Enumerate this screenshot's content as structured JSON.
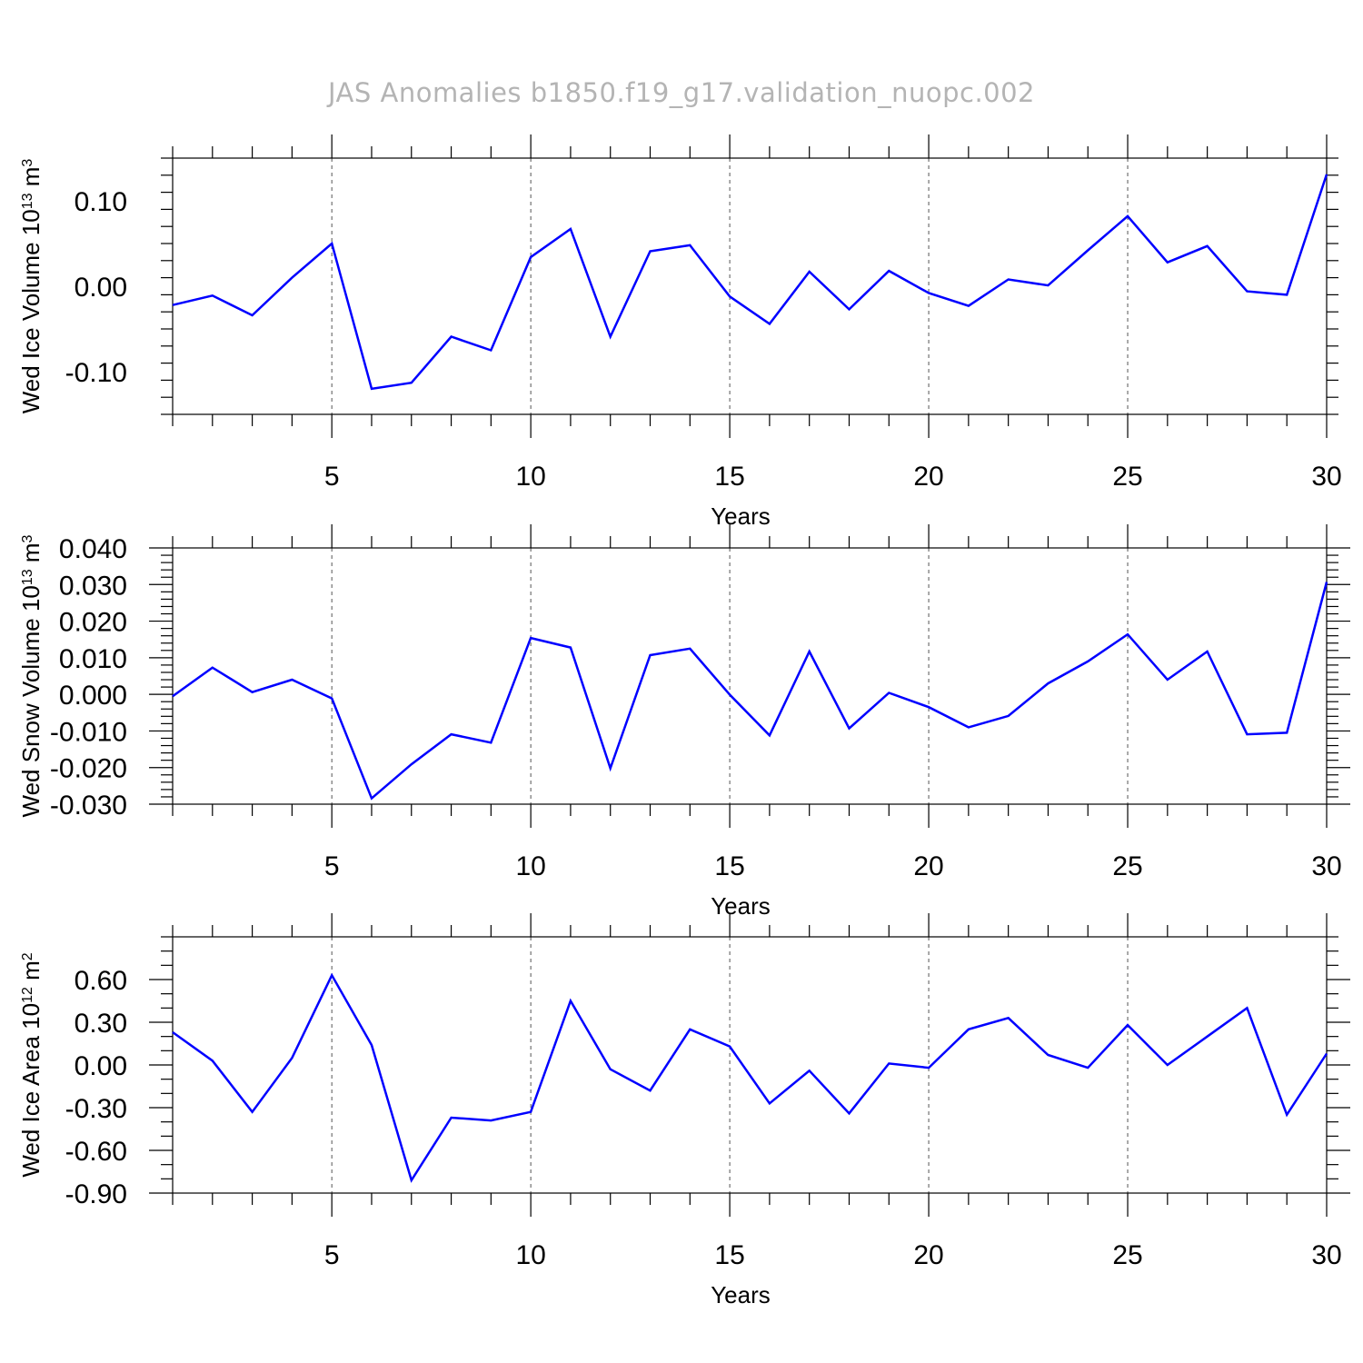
{
  "title": "JAS Anomalies b1850.f19_g17.validation_nuopc.002",
  "colors": {
    "line": "#0000ff",
    "title": "#b4b4b4",
    "grid": "#555555",
    "axis": "#000000"
  },
  "chart_data": [
    {
      "type": "line",
      "name": "ice-volume-panel",
      "xlabel": "Years",
      "ylabel_main": "Wed Ice Volume 10",
      "ylabel_exp": "13",
      "ylabel_unit": " m",
      "ylabel_unit_exp": "3",
      "xlim": [
        1,
        30
      ],
      "ylim": [
        -0.15,
        0.15
      ],
      "x_major_ticks": [
        5,
        10,
        15,
        20,
        25,
        30
      ],
      "x_tick_labels": [
        "5",
        "10",
        "15",
        "20",
        "25",
        "30"
      ],
      "y_major_ticks": [
        -0.1,
        0.0,
        0.1
      ],
      "y_tick_labels": [
        "-0.10",
        "0.00",
        "0.10"
      ],
      "y_minor_step": 0.02,
      "x": [
        1,
        2,
        3,
        4,
        5,
        6,
        7,
        8,
        9,
        10,
        11,
        12,
        13,
        14,
        15,
        16,
        17,
        18,
        19,
        20,
        21,
        22,
        23,
        24,
        25,
        26,
        27,
        28,
        29,
        30
      ],
      "values": [
        -0.022,
        -0.011,
        -0.034,
        0.01,
        0.05,
        -0.12,
        -0.113,
        -0.059,
        -0.075,
        0.034,
        0.067,
        -0.059,
        0.041,
        0.048,
        -0.012,
        -0.044,
        0.017,
        -0.027,
        0.018,
        -0.008,
        -0.023,
        0.008,
        0.001,
        0.042,
        0.082,
        0.028,
        0.047,
        -0.006,
        -0.01,
        0.131
      ]
    },
    {
      "type": "line",
      "name": "snow-volume-panel",
      "xlabel": "Years",
      "ylabel_main": "Wed Snow Volume 10",
      "ylabel_exp": "13",
      "ylabel_unit": " m",
      "ylabel_unit_exp": "3",
      "xlim": [
        1,
        30
      ],
      "ylim": [
        -0.03,
        0.04
      ],
      "x_major_ticks": [
        5,
        10,
        15,
        20,
        25,
        30
      ],
      "x_tick_labels": [
        "5",
        "10",
        "15",
        "20",
        "25",
        "30"
      ],
      "y_major_ticks": [
        -0.03,
        -0.02,
        -0.01,
        0.0,
        0.01,
        0.02,
        0.03,
        0.04
      ],
      "y_tick_labels": [
        "-0.030",
        "-0.020",
        "-0.010",
        "0.000",
        "0.010",
        "0.020",
        "0.030",
        "0.040"
      ],
      "y_minor_step": 0.002,
      "x": [
        1,
        2,
        3,
        4,
        5,
        6,
        7,
        8,
        9,
        10,
        11,
        12,
        13,
        14,
        15,
        16,
        17,
        18,
        19,
        20,
        21,
        22,
        23,
        24,
        25,
        26,
        27,
        28,
        29,
        30
      ],
      "values": [
        -0.0005,
        0.0073,
        0.0006,
        0.004,
        -0.0011,
        -0.0284,
        -0.0191,
        -0.0109,
        -0.0132,
        0.0154,
        0.0128,
        -0.0202,
        0.0107,
        0.0125,
        -0.0001,
        -0.0112,
        0.0117,
        -0.0093,
        0.0004,
        -0.0035,
        -0.009,
        -0.0059,
        0.003,
        0.009,
        0.0164,
        0.004,
        0.0117,
        -0.0109,
        -0.0105,
        0.0307
      ]
    },
    {
      "type": "line",
      "name": "ice-area-panel",
      "xlabel": "Years",
      "ylabel_main": "Wed Ice Area 10",
      "ylabel_exp": "12",
      "ylabel_unit": " m",
      "ylabel_unit_exp": "2",
      "xlim": [
        1,
        30
      ],
      "ylim": [
        -0.9,
        0.9
      ],
      "x_major_ticks": [
        5,
        10,
        15,
        20,
        25,
        30
      ],
      "x_tick_labels": [
        "5",
        "10",
        "15",
        "20",
        "25",
        "30"
      ],
      "y_major_ticks": [
        -0.9,
        -0.6,
        -0.3,
        0.0,
        0.3,
        0.6
      ],
      "y_tick_labels": [
        "-0.90",
        "-0.60",
        "-0.30",
        "0.00",
        "0.30",
        "0.60"
      ],
      "y_minor_step": 0.1,
      "x": [
        1,
        2,
        3,
        4,
        5,
        6,
        7,
        8,
        9,
        10,
        11,
        12,
        13,
        14,
        15,
        16,
        17,
        18,
        19,
        20,
        21,
        22,
        23,
        24,
        25,
        26,
        27,
        28,
        29,
        30
      ],
      "values": [
        0.23,
        0.03,
        -0.33,
        0.05,
        0.63,
        0.14,
        -0.81,
        -0.37,
        -0.39,
        -0.33,
        0.45,
        -0.03,
        -0.18,
        0.25,
        0.13,
        -0.27,
        -0.04,
        -0.34,
        0.01,
        -0.02,
        0.25,
        0.33,
        0.07,
        -0.02,
        0.28,
        0.0,
        0.2,
        0.4,
        -0.35,
        0.08
      ]
    }
  ]
}
